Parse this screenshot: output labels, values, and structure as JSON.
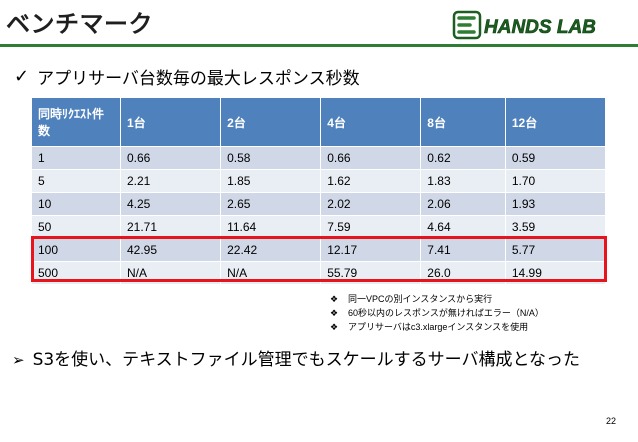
{
  "slide": {
    "title": "ベンチマーク",
    "logo_text": "HANDS LAB",
    "page_number": "22"
  },
  "heading1": {
    "icon": "check-icon",
    "text": "アプリサーバ台数毎の最大レスポンス秒数"
  },
  "table": {
    "header_color": "#4f81bd",
    "headers": [
      "同時ﾘｸｴｽﾄ件数",
      "1台",
      "2台",
      "4台",
      "8台",
      "12台"
    ],
    "rows": [
      [
        "1",
        "0.66",
        "0.58",
        "0.66",
        "0.62",
        "0.59"
      ],
      [
        "5",
        "2.21",
        "1.85",
        "1.62",
        "1.83",
        "1.70"
      ],
      [
        "10",
        "4.25",
        "2.65",
        "2.02",
        "2.06",
        "1.93"
      ],
      [
        "50",
        "21.71",
        "11.64",
        "7.59",
        "4.64",
        "3.59"
      ],
      [
        "100",
        "42.95",
        "22.42",
        "12.17",
        "7.41",
        "5.77"
      ],
      [
        "500",
        "N/A",
        "N/A",
        "55.79",
        "26.0",
        "14.99"
      ]
    ],
    "highlight_color": "#e8141b"
  },
  "notes": [
    "同一VPCの別インスタンスから実行",
    "60秒以内のレスポンスが無ければエラー（N/A）",
    "アプリサーバはc3.xlargeインスタンスを使用"
  ],
  "heading2": {
    "icon": "arrow-bullet-icon",
    "text": "S3を使い、テキストファイル管理でもスケールするサーバ構成となった"
  }
}
